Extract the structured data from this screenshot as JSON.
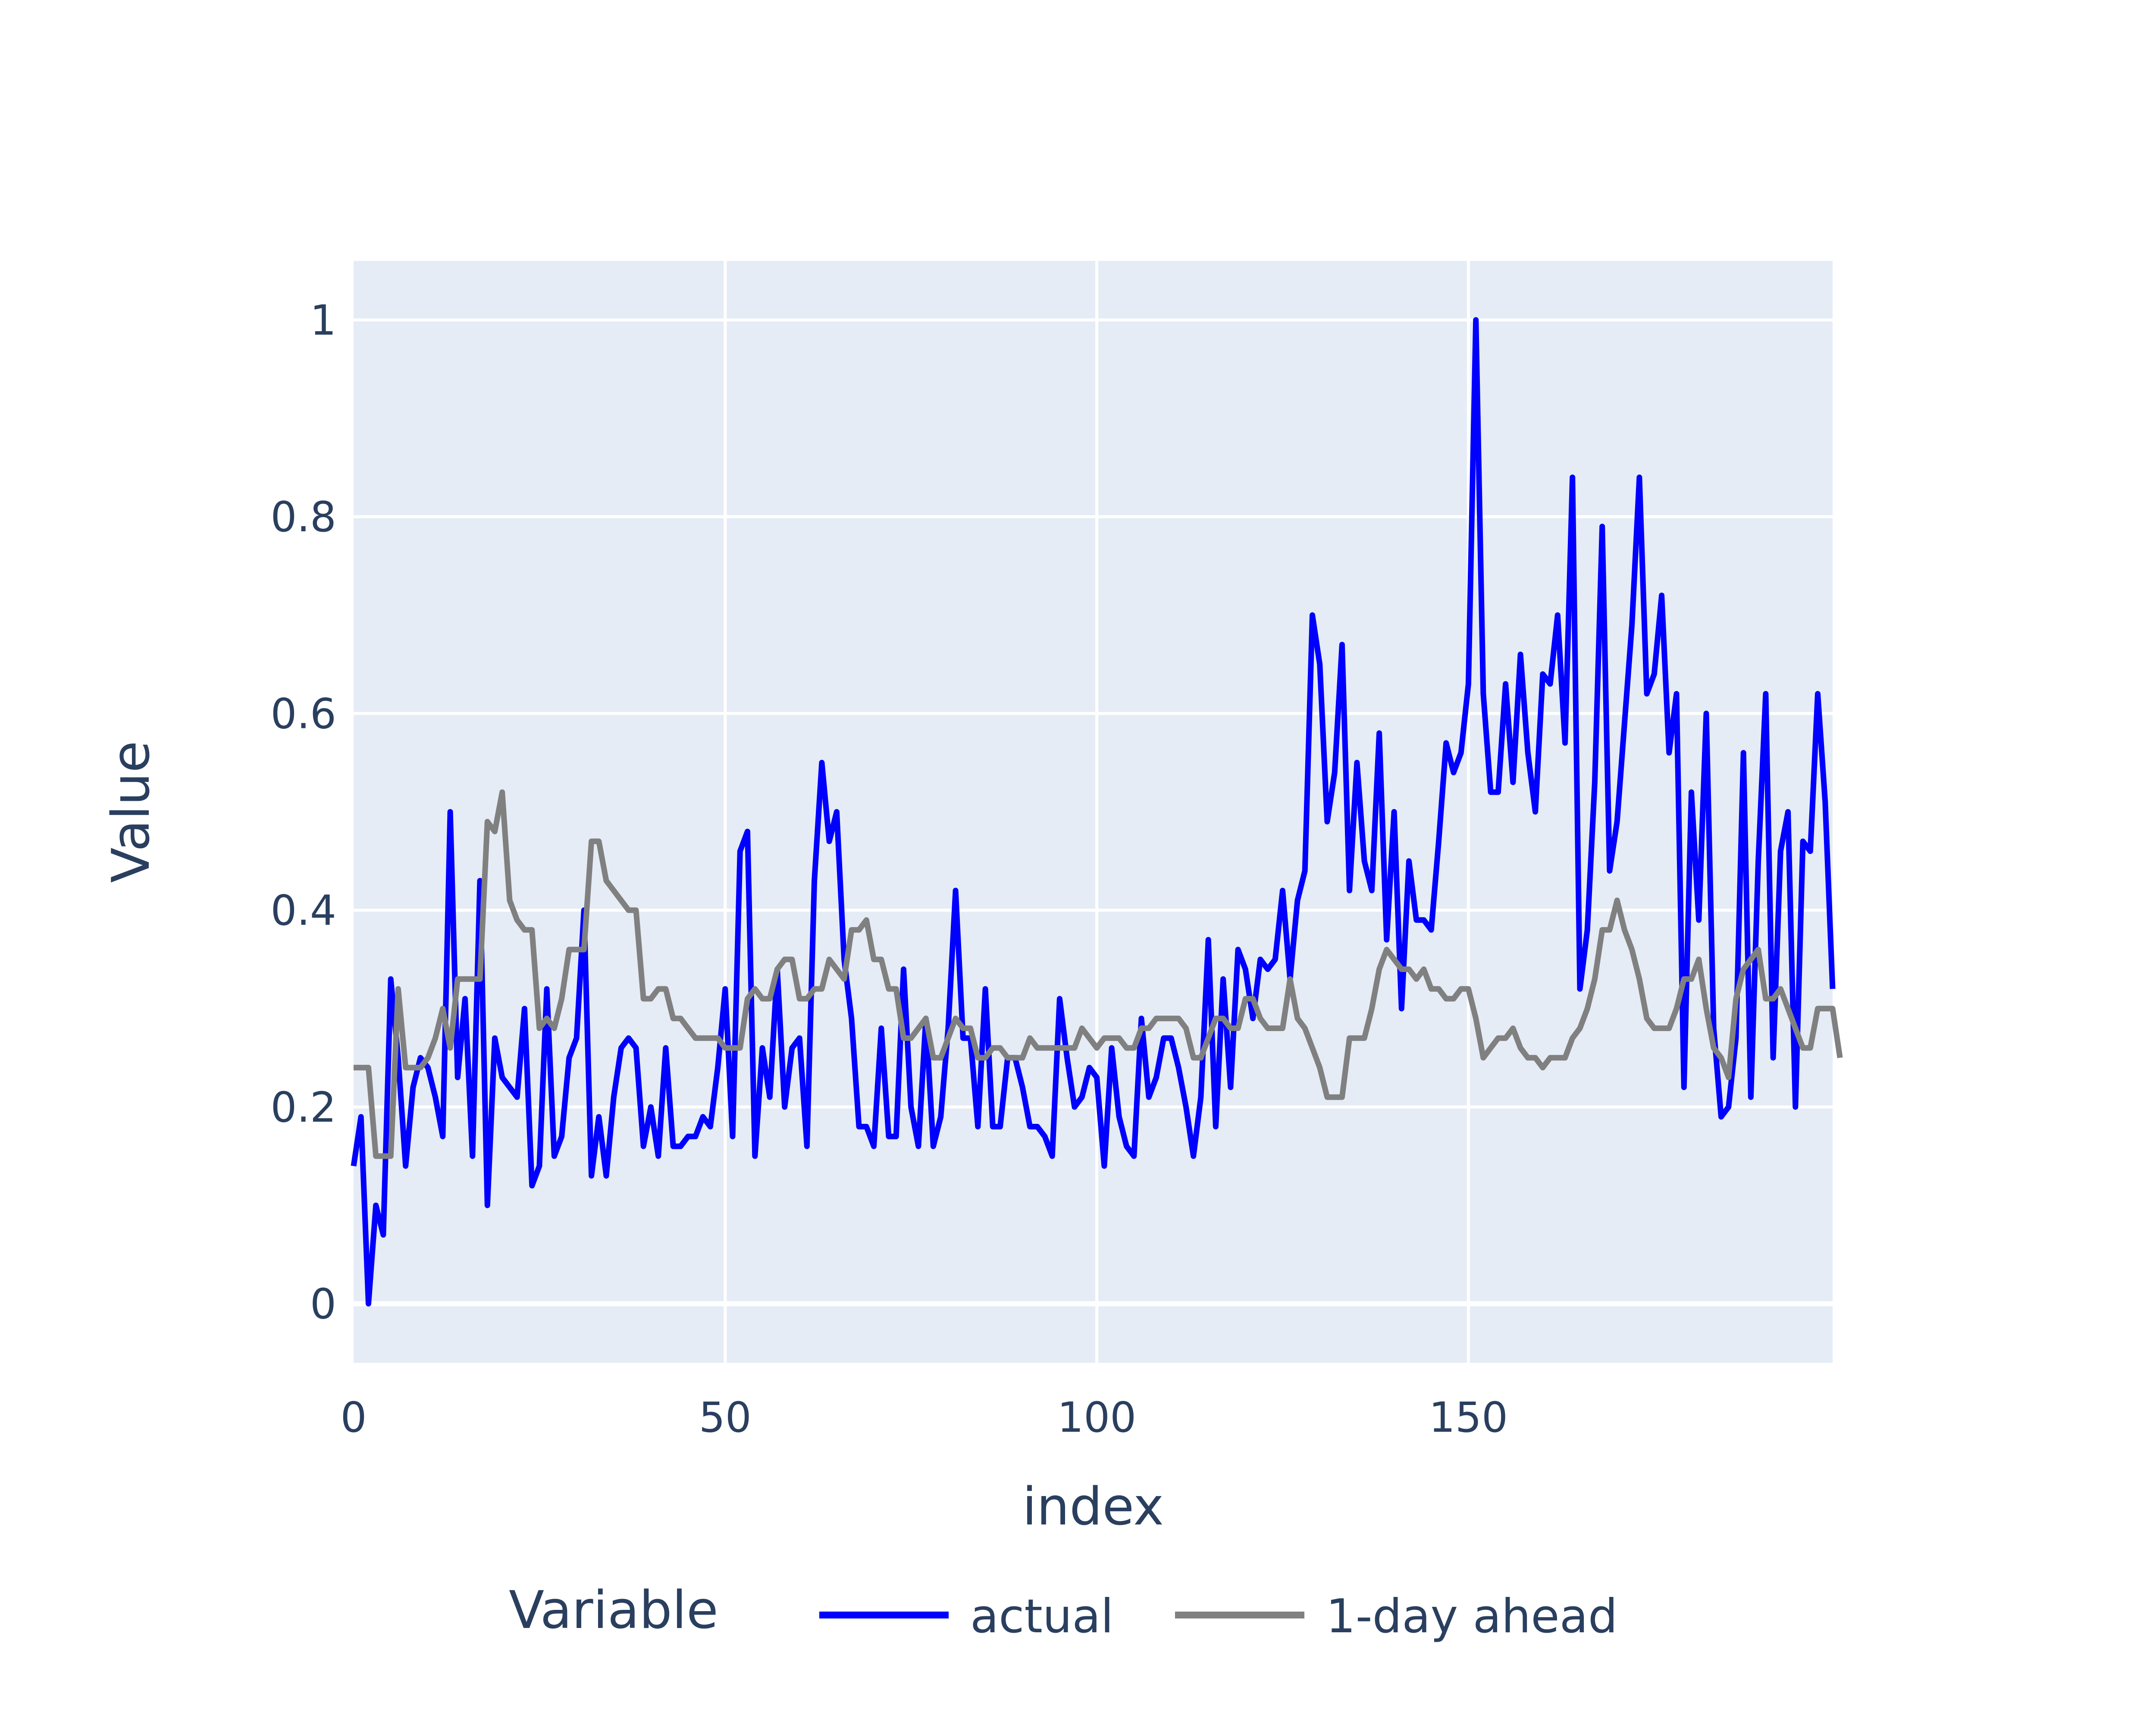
{
  "chart_data": {
    "type": "line",
    "xlabel": "index",
    "ylabel": "Value",
    "xlim": [
      0,
      199
    ],
    "ylim": [
      -0.06,
      1.06
    ],
    "x_ticks": [
      0,
      50,
      100,
      150
    ],
    "y_ticks": [
      0,
      0.2,
      0.4,
      0.6,
      0.8,
      1
    ],
    "x_tick_labels": [
      "0",
      "50",
      "100",
      "150"
    ],
    "y_tick_labels": [
      "0",
      "0.2",
      "0.4",
      "0.6",
      "0.8",
      "1"
    ],
    "grid": true,
    "legend": {
      "title": "Variable",
      "placement": "bottom"
    },
    "colors": {
      "plot_bg": "#e5ecf6",
      "grid": "#ffffff",
      "text": "#2a3f5f"
    },
    "series": [
      {
        "name": "actual",
        "color": "#0000ff",
        "values": [
          0.14,
          0.19,
          0.0,
          0.1,
          0.07,
          0.33,
          0.25,
          0.14,
          0.22,
          0.25,
          0.24,
          0.21,
          0.17,
          0.5,
          0.23,
          0.31,
          0.15,
          0.43,
          0.1,
          0.27,
          0.23,
          0.22,
          0.21,
          0.3,
          0.12,
          0.14,
          0.32,
          0.15,
          0.17,
          0.25,
          0.27,
          0.4,
          0.13,
          0.19,
          0.13,
          0.21,
          0.26,
          0.27,
          0.26,
          0.16,
          0.2,
          0.15,
          0.26,
          0.16,
          0.16,
          0.17,
          0.17,
          0.19,
          0.18,
          0.24,
          0.32,
          0.17,
          0.46,
          0.48,
          0.15,
          0.26,
          0.21,
          0.34,
          0.2,
          0.26,
          0.27,
          0.16,
          0.43,
          0.55,
          0.47,
          0.5,
          0.35,
          0.29,
          0.18,
          0.18,
          0.16,
          0.28,
          0.17,
          0.17,
          0.34,
          0.2,
          0.16,
          0.29,
          0.16,
          0.19,
          0.28,
          0.42,
          0.27,
          0.27,
          0.18,
          0.32,
          0.18,
          0.18,
          0.25,
          0.25,
          0.22,
          0.18,
          0.18,
          0.17,
          0.15,
          0.31,
          0.25,
          0.2,
          0.21,
          0.24,
          0.23,
          0.14,
          0.26,
          0.19,
          0.16,
          0.15,
          0.29,
          0.21,
          0.23,
          0.27,
          0.27,
          0.24,
          0.2,
          0.15,
          0.21,
          0.37,
          0.18,
          0.33,
          0.22,
          0.36,
          0.34,
          0.29,
          0.35,
          0.34,
          0.35,
          0.42,
          0.33,
          0.41,
          0.44,
          0.7,
          0.65,
          0.49,
          0.54,
          0.67,
          0.42,
          0.55,
          0.45,
          0.42,
          0.58,
          0.37,
          0.5,
          0.3,
          0.45,
          0.39,
          0.39,
          0.38,
          0.47,
          0.57,
          0.54,
          0.56,
          0.63,
          1.0,
          0.62,
          0.52,
          0.52,
          0.63,
          0.53,
          0.66,
          0.56,
          0.5,
          0.64,
          0.63,
          0.7,
          0.57,
          0.84,
          0.32,
          0.38,
          0.53,
          0.79,
          0.44,
          0.49,
          0.59,
          0.69,
          0.84,
          0.62,
          0.64,
          0.72,
          0.56,
          0.62,
          0.22,
          0.52,
          0.39,
          0.6,
          0.28,
          0.19,
          0.2,
          0.27,
          0.56,
          0.21,
          0.45,
          0.62,
          0.25,
          0.46,
          0.5,
          0.2,
          0.47,
          0.46,
          0.62,
          0.51,
          0.32
        ]
      },
      {
        "name": "1-day ahead",
        "color": "#808080",
        "values": [
          0.24,
          0.24,
          0.24,
          0.15,
          0.15,
          0.15,
          0.32,
          0.24,
          0.24,
          0.24,
          0.25,
          0.27,
          0.3,
          0.26,
          0.33,
          0.33,
          0.33,
          0.33,
          0.49,
          0.48,
          0.52,
          0.41,
          0.39,
          0.38,
          0.38,
          0.28,
          0.29,
          0.28,
          0.31,
          0.36,
          0.36,
          0.36,
          0.47,
          0.47,
          0.43,
          0.42,
          0.41,
          0.4,
          0.4,
          0.31,
          0.31,
          0.32,
          0.32,
          0.29,
          0.29,
          0.28,
          0.27,
          0.27,
          0.27,
          0.27,
          0.26,
          0.26,
          0.26,
          0.31,
          0.32,
          0.31,
          0.31,
          0.34,
          0.35,
          0.35,
          0.31,
          0.31,
          0.32,
          0.32,
          0.35,
          0.34,
          0.33,
          0.38,
          0.38,
          0.39,
          0.35,
          0.35,
          0.32,
          0.32,
          0.27,
          0.27,
          0.28,
          0.29,
          0.25,
          0.25,
          0.27,
          0.29,
          0.28,
          0.28,
          0.25,
          0.25,
          0.26,
          0.26,
          0.25,
          0.25,
          0.25,
          0.27,
          0.26,
          0.26,
          0.26,
          0.26,
          0.26,
          0.26,
          0.28,
          0.27,
          0.26,
          0.27,
          0.27,
          0.27,
          0.26,
          0.26,
          0.28,
          0.28,
          0.29,
          0.29,
          0.29,
          0.29,
          0.28,
          0.25,
          0.25,
          0.27,
          0.29,
          0.29,
          0.28,
          0.28,
          0.31,
          0.31,
          0.29,
          0.28,
          0.28,
          0.28,
          0.33,
          0.29,
          0.28,
          0.26,
          0.24,
          0.21,
          0.21,
          0.21,
          0.27,
          0.27,
          0.27,
          0.3,
          0.34,
          0.36,
          0.35,
          0.34,
          0.34,
          0.33,
          0.34,
          0.32,
          0.32,
          0.31,
          0.31,
          0.32,
          0.32,
          0.29,
          0.25,
          0.26,
          0.27,
          0.27,
          0.28,
          0.26,
          0.25,
          0.25,
          0.24,
          0.25,
          0.25,
          0.25,
          0.27,
          0.28,
          0.3,
          0.33,
          0.38,
          0.38,
          0.41,
          0.38,
          0.36,
          0.33,
          0.29,
          0.28,
          0.28,
          0.28,
          0.3,
          0.33,
          0.33,
          0.35,
          0.3,
          0.26,
          0.25,
          0.23,
          0.31,
          0.34,
          0.35,
          0.36,
          0.31,
          0.31,
          0.32,
          0.3,
          0.28,
          0.26,
          0.26,
          0.3,
          0.3,
          0.3,
          0.25
        ]
      }
    ]
  }
}
